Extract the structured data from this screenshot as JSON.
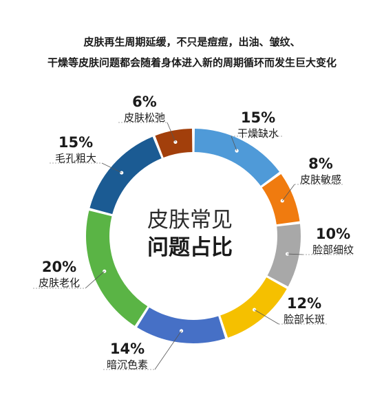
{
  "header": {
    "line1": "皮肤再生周期延缓，不只是痘痘，出油、皱纹、",
    "line2": "干燥等皮肤问题都会随着身体进入新的周期循环而发生巨大变化"
  },
  "center": {
    "line1": "皮肤常见",
    "line2": "问题占比"
  },
  "chart_data": {
    "type": "pie",
    "donut": true,
    "unit": "%",
    "categories": [
      "干燥缺水",
      "皮肤敏感",
      "脸部细纹",
      "脸部长斑",
      "暗沉色素",
      "皮肤老化",
      "毛孔粗大",
      "皮肤松弛"
    ],
    "values": [
      15,
      8,
      10,
      12,
      14,
      20,
      15,
      6
    ],
    "labels": [
      "15%",
      "8%",
      "10%",
      "12%",
      "14%",
      "20%",
      "15%",
      "6%"
    ],
    "colors": [
      "#4f9ad8",
      "#f07b0f",
      "#a8a8a8",
      "#f5c000",
      "#4670c6",
      "#5ab445",
      "#1b5b93",
      "#a23f0b"
    ],
    "start": "12 o'clock",
    "direction": "clockwise"
  }
}
